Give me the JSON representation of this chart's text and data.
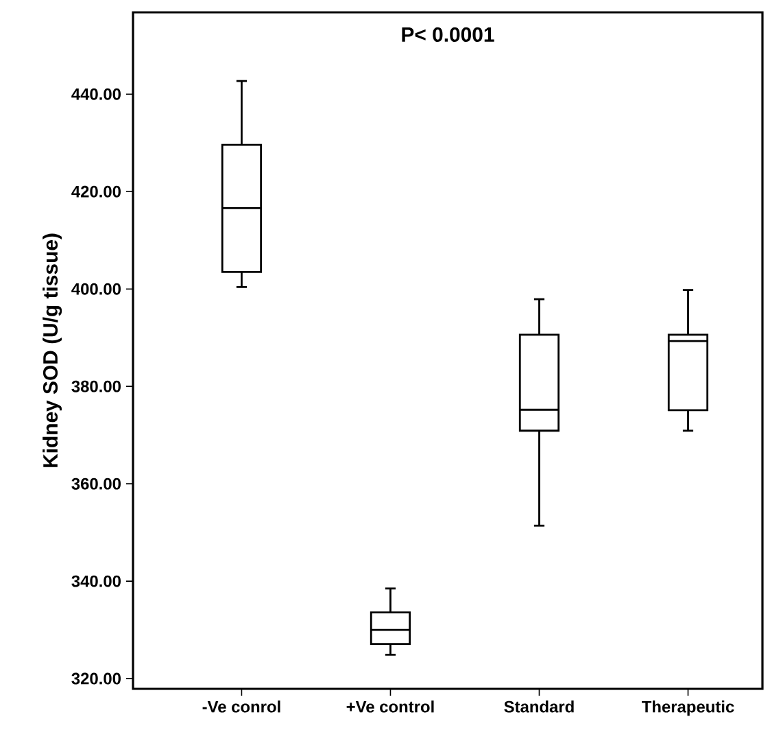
{
  "chart_data": {
    "type": "box",
    "ylabel": "Kidney SOD (U/g tissue)",
    "annotations": [
      "P< 0.0001"
    ],
    "categories": [
      "-Ve conrol",
      "+Ve control",
      "Standard",
      "Therapeutic"
    ],
    "boxes": [
      {
        "low": 400.4,
        "q1": 403.5,
        "median": 416.6,
        "q3": 429.6,
        "high": 442.7
      },
      {
        "low": 324.9,
        "q1": 327.1,
        "median": 330.0,
        "q3": 333.6,
        "high": 338.5
      },
      {
        "low": 351.4,
        "q1": 370.9,
        "median": 375.2,
        "q3": 390.6,
        "high": 397.9
      },
      {
        "low": 370.9,
        "q1": 375.1,
        "median": 389.3,
        "q3": 390.6,
        "high": 399.8
      }
    ],
    "color": "#000000",
    "ylim": [
      317.9,
      456.8
    ],
    "yticks": [
      {
        "value": 320,
        "label": "320.00"
      },
      {
        "value": 340,
        "label": "340.00"
      },
      {
        "value": 360,
        "label": "360.00"
      },
      {
        "value": 380,
        "label": "380.00"
      },
      {
        "value": 400,
        "label": "400.00"
      },
      {
        "value": 420,
        "label": "420.00"
      },
      {
        "value": 440,
        "label": "440.00"
      }
    ],
    "grid": false
  }
}
